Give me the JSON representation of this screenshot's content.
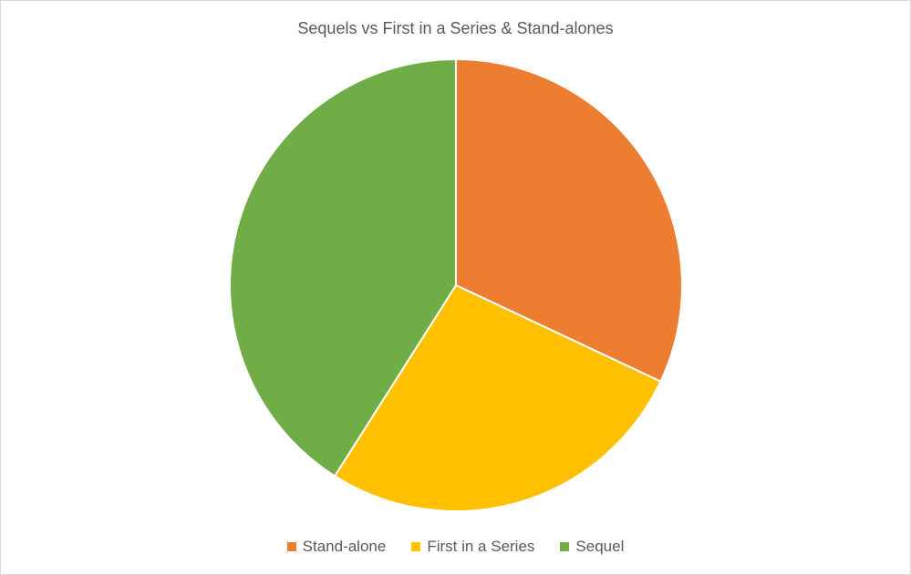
{
  "chart_data": {
    "type": "pie",
    "title": "Sequels vs First in a Series & Stand-alones",
    "categories": [
      "Stand-alone",
      "First in a Series",
      "Sequel"
    ],
    "values": [
      32,
      27,
      41
    ],
    "colors": [
      "#ED7D31",
      "#FFC000",
      "#70AD47"
    ],
    "legend_position": "bottom",
    "start_angle_deg": 0
  }
}
